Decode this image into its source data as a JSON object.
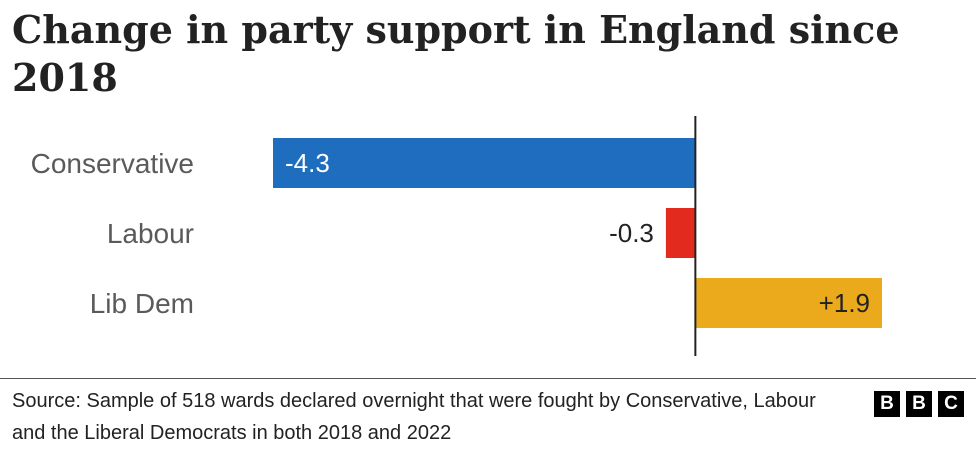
{
  "title": "Change in party support in England since 2018",
  "source": "Source: Sample of 518 wards declared overnight that were fought by Conservative, Labour and the Liberal Democrats in both 2018 and 2022",
  "logo_letters": [
    "B",
    "B",
    "C"
  ],
  "chart_data": {
    "type": "bar",
    "orientation": "horizontal",
    "title": "Change in party support in England since 2018",
    "categories": [
      "Conservative",
      "Labour",
      "Lib Dem"
    ],
    "values": [
      -4.3,
      -0.3,
      1.9
    ],
    "value_labels": [
      "-4.3",
      "-0.3",
      "+1.9"
    ],
    "colors": [
      "#1f6dbf",
      "#e22b1e",
      "#ebaa1c"
    ],
    "xlim": [
      -4.3,
      1.9
    ],
    "grid": false,
    "zero_line": true
  }
}
